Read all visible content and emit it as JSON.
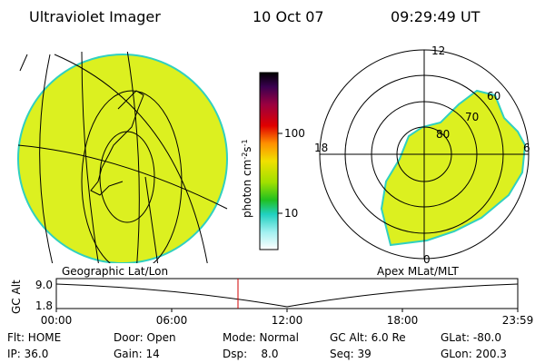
{
  "header": {
    "title": "Ultraviolet Imager",
    "date": "10 Oct 07",
    "time": "09:29:49 UT"
  },
  "left_panel": {
    "label": "Geographic Lat/Lon"
  },
  "colorbar": {
    "unit": [
      "photon cm",
      "-2",
      "s",
      "-1"
    ],
    "ticks": [
      "100",
      "10"
    ]
  },
  "polar": {
    "label": "Apex MLat/MLT",
    "mlt_labels": [
      "12",
      "18",
      "6",
      "0"
    ],
    "lat_labels": [
      "60",
      "70",
      "80"
    ]
  },
  "altitude": {
    "axis_label": "GC Alt",
    "yticks": [
      "9.0",
      "1.8"
    ],
    "xticks": [
      "00:00",
      "06:00",
      "12:00",
      "18:00",
      "23:59"
    ]
  },
  "status": [
    [
      "Flt: HOME",
      "Door: Open",
      "Mode: Normal",
      "GC Alt: 6.0 Re",
      "GLat: -80.0"
    ],
    [
      "IP: 36.0",
      "Gain: 14",
      "Dsp:    8.0",
      "Seq: 39",
      "GLon: 200.3"
    ]
  ]
}
